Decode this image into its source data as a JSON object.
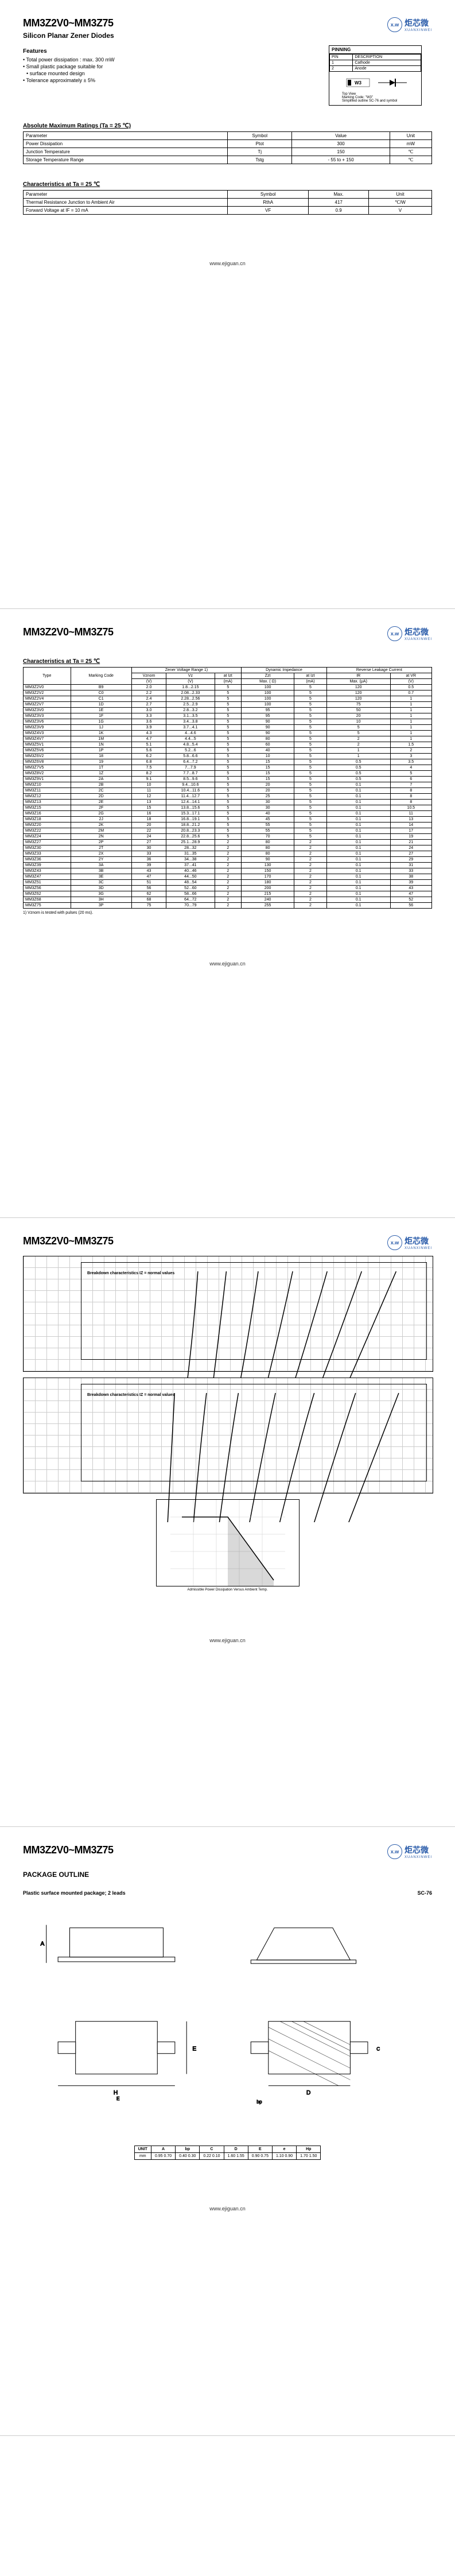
{
  "doc": {
    "partRange": "MM3Z2V0~MM3Z75",
    "subtitle": "Silicon Planar Zener Diodes",
    "brand": "炬芯微",
    "brandSub": "XUANXINWEI",
    "footer": "www.ejiguan.cn"
  },
  "features": {
    "title": "Features",
    "items": [
      "Total power dissipation : max. 300 mW",
      "Small plastic package suitable for",
      "surface mounted design",
      "Tolerance approximately ± 5%"
    ]
  },
  "pinning": {
    "title": "PINNING",
    "pin": "PIN",
    "desc": "DESCRIPTION",
    "rows": [
      [
        "1",
        "Cathode"
      ],
      [
        "2",
        "Anode"
      ]
    ],
    "markingLabel": "W3",
    "topView": "Top View",
    "marking": "Marking Code: \"W3\"",
    "outline": "Simplified outline SC-76 and symbol"
  },
  "absMax": {
    "title": "Absolute Maximum Ratings (Ta = 25 ℃)",
    "headers": [
      "Parameter",
      "Symbol",
      "Value",
      "Unit"
    ],
    "rows": [
      [
        "Power Dissipation",
        "Ptot",
        "300",
        "mW"
      ],
      [
        "Junction Temperature",
        "Tj",
        "150",
        "℃"
      ],
      [
        "Storage Temperature Range",
        "Tstg",
        "- 55 to + 150",
        "℃"
      ]
    ]
  },
  "char25": {
    "title": "Characteristics at Ta = 25 ℃",
    "headers": [
      "Parameter",
      "Symbol",
      "Max.",
      "Unit"
    ],
    "rows": [
      [
        "Thermal Resistance Junction to Ambient Air",
        "RthA",
        "417",
        "℃/W"
      ],
      [
        "Forward Voltage at IF = 10 mA",
        "VF",
        "0.9",
        "V"
      ]
    ]
  },
  "bigTable": {
    "title": "Characteristics at Ta = 25 ℃",
    "h1": [
      "Type",
      "Marking Code",
      "Zener Voltage Range 1)",
      "",
      "",
      "Dynamic Impedance",
      "",
      "Reverse Leakage Current",
      ""
    ],
    "h2": [
      "",
      "",
      "Vznom",
      "Vz",
      "at Izt",
      "Zzt",
      "at Izt",
      "IR",
      "at VR"
    ],
    "h3": [
      "",
      "",
      "(V)",
      "(V)",
      "(mA)",
      "Max. ( Ω)",
      "(mA)",
      "Max. (μA)",
      "(V)"
    ],
    "rows": [
      [
        "MM3Z2V0",
        "B9",
        "2.0",
        "1.8...2.15",
        "5",
        "100",
        "5",
        "120",
        "0.5"
      ],
      [
        "MM3Z2V2",
        "C0",
        "2.2",
        "2.08...2.33",
        "5",
        "100",
        "5",
        "120",
        "0.7"
      ],
      [
        "MM3Z2V4",
        "C1",
        "2.4",
        "2.28...2.56",
        "5",
        "100",
        "5",
        "120",
        "1"
      ],
      [
        "MM3Z2V7",
        "1D",
        "2.7",
        "2.5...2.9",
        "5",
        "100",
        "5",
        "75",
        "1"
      ],
      [
        "MM3Z3V0",
        "1E",
        "3.0",
        "2.8...3.2",
        "5",
        "95",
        "5",
        "50",
        "1"
      ],
      [
        "MM3Z3V3",
        "1F",
        "3.3",
        "3.1...3.5",
        "5",
        "95",
        "5",
        "20",
        "1"
      ],
      [
        "MM3Z3V6",
        "1G",
        "3.6",
        "3.4...3.8",
        "5",
        "90",
        "5",
        "10",
        "1"
      ],
      [
        "MM3Z3V9",
        "1J",
        "3.9",
        "3.7...4.1",
        "5",
        "90",
        "5",
        "5",
        "1"
      ],
      [
        "MM3Z4V3",
        "1K",
        "4.3",
        "4...4.6",
        "5",
        "90",
        "5",
        "5",
        "1"
      ],
      [
        "MM3Z4V7",
        "1M",
        "4.7",
        "4.4...5",
        "5",
        "80",
        "5",
        "2",
        "1"
      ],
      [
        "MM3Z5V1",
        "1N",
        "5.1",
        "4.8...5.4",
        "5",
        "60",
        "5",
        "2",
        "1.5"
      ],
      [
        "MM3Z5V6",
        "1P",
        "5.6",
        "5.2...6",
        "5",
        "40",
        "5",
        "1",
        "2"
      ],
      [
        "MM3Z6V2",
        "18",
        "6.2",
        "5.8...6.6",
        "5",
        "10",
        "5",
        "1",
        "3"
      ],
      [
        "MM3Z6V8",
        "19",
        "6.8",
        "6.4...7.2",
        "5",
        "15",
        "5",
        "0.5",
        "3.5"
      ],
      [
        "MM3Z7V5",
        "1T",
        "7.5",
        "7...7.9",
        "5",
        "15",
        "5",
        "0.5",
        "4"
      ],
      [
        "MM3Z8V2",
        "1Z",
        "8.2",
        "7.7...8.7",
        "5",
        "15",
        "5",
        "0.5",
        "5"
      ],
      [
        "MM3Z9V1",
        "2A",
        "9.1",
        "8.5...9.6",
        "5",
        "15",
        "5",
        "0.5",
        "6"
      ],
      [
        "MM3Z10",
        "2B",
        "10",
        "9.4...10.6",
        "5",
        "20",
        "5",
        "0.1",
        "7"
      ],
      [
        "MM3Z11",
        "2C",
        "11",
        "10.4...11.6",
        "5",
        "20",
        "5",
        "0.1",
        "8"
      ],
      [
        "MM3Z12",
        "2D",
        "12",
        "11.4...12.7",
        "5",
        "25",
        "5",
        "0.1",
        "8"
      ],
      [
        "MM3Z13",
        "2E",
        "13",
        "12.4...14.1",
        "5",
        "30",
        "5",
        "0.1",
        "8"
      ],
      [
        "MM3Z15",
        "2F",
        "15",
        "13.8...15.6",
        "5",
        "30",
        "5",
        "0.1",
        "10.5"
      ],
      [
        "MM3Z16",
        "2G",
        "16",
        "15.3...17.1",
        "5",
        "40",
        "5",
        "0.1",
        "11"
      ],
      [
        "MM3Z18",
        "2J",
        "18",
        "16.8...19.1",
        "5",
        "45",
        "5",
        "0.1",
        "13"
      ],
      [
        "MM3Z20",
        "2K",
        "20",
        "18.8...21.2",
        "5",
        "55",
        "5",
        "0.1",
        "14"
      ],
      [
        "MM3Z22",
        "2M",
        "22",
        "20.8...23.3",
        "5",
        "55",
        "5",
        "0.1",
        "17"
      ],
      [
        "MM3Z24",
        "2N",
        "24",
        "22.8...25.6",
        "5",
        "70",
        "5",
        "0.1",
        "19"
      ],
      [
        "MM3Z27",
        "2P",
        "27",
        "25.1...28.9",
        "2",
        "80",
        "2",
        "0.1",
        "21"
      ],
      [
        "MM3Z30",
        "2T",
        "30",
        "28...32",
        "2",
        "80",
        "2",
        "0.1",
        "24"
      ],
      [
        "MM3Z33",
        "2X",
        "33",
        "31...35",
        "2",
        "80",
        "2",
        "0.1",
        "27"
      ],
      [
        "MM3Z36",
        "2Y",
        "36",
        "34...38",
        "2",
        "90",
        "2",
        "0.1",
        "29"
      ],
      [
        "MM3Z39",
        "3A",
        "39",
        "37...41",
        "2",
        "130",
        "2",
        "0.1",
        "31"
      ],
      [
        "MM3Z43",
        "3B",
        "43",
        "40...46",
        "2",
        "150",
        "2",
        "0.1",
        "33"
      ],
      [
        "MM3Z47",
        "3E",
        "47",
        "44...50",
        "2",
        "170",
        "2",
        "0.1",
        "38"
      ],
      [
        "MM3Z51",
        "3C",
        "51",
        "48...54",
        "2",
        "180",
        "2",
        "0.1",
        "39"
      ],
      [
        "MM3Z56",
        "3D",
        "56",
        "52...60",
        "2",
        "200",
        "2",
        "0.1",
        "43"
      ],
      [
        "MM3Z62",
        "3G",
        "62",
        "58...66",
        "2",
        "215",
        "2",
        "0.1",
        "47"
      ],
      [
        "MM3Z68",
        "3H",
        "68",
        "64...72",
        "2",
        "240",
        "2",
        "0.1",
        "52"
      ],
      [
        "MM3Z75",
        "3P",
        "75",
        "70...79",
        "2",
        "255",
        "2",
        "0.1",
        "56"
      ]
    ],
    "note": "1) Vznom is tested with pulses (20 ms)."
  },
  "graphs": {
    "g1Title": "Breakdown characteristics\nIZ = normal values",
    "g2Title": "Breakdown characteristics\nIZ = normal values",
    "g3Title": "Admissible Power Dissipation\nVersus Ambient Temp."
  },
  "pkg": {
    "title": "PACKAGE OUTLINE",
    "sub": "Plastic surface mounted package; 2 leads",
    "code": "SC-76",
    "dimHeaders": [
      "UNIT",
      "A",
      "bp",
      "C",
      "D",
      "E",
      "e",
      "Hp"
    ],
    "dimRows": [
      [
        "mm",
        "0.95 0.70",
        "0.40 0.30",
        "0.22 0.10",
        "1.60 1.55",
        "0.90 0.75",
        "1.10 0.90",
        "1.70 1.50"
      ]
    ]
  }
}
